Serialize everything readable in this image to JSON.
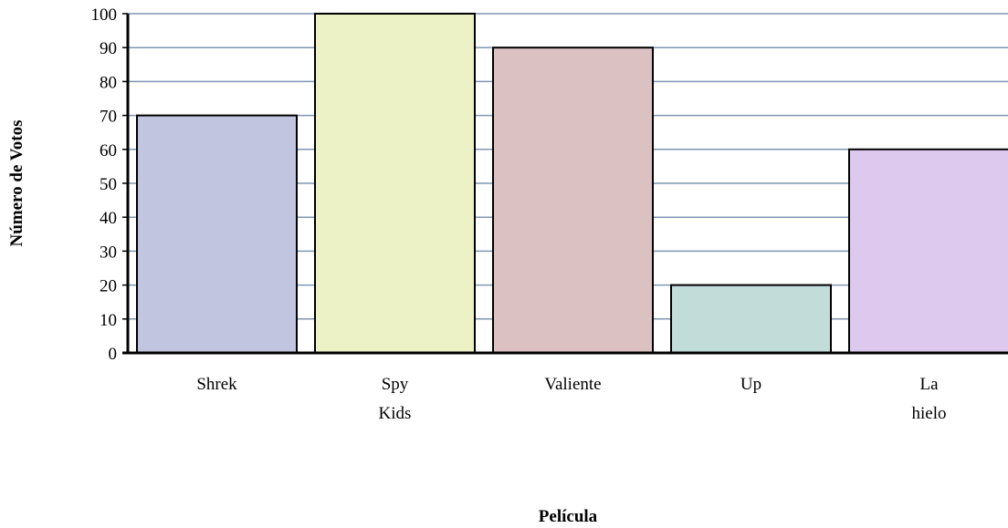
{
  "chart_data": {
    "type": "bar",
    "categories": [
      "Shrek",
      "Spy Kids",
      "Valiente",
      "Up",
      "La hielo"
    ],
    "category_lines": [
      [
        "Shrek"
      ],
      [
        "Spy",
        "Kids"
      ],
      [
        "Valiente"
      ],
      [
        "Up"
      ],
      [
        "La",
        "hielo"
      ]
    ],
    "values": [
      70,
      100,
      90,
      20,
      60
    ],
    "colors": [
      "#c1c5e0",
      "#ecf2c6",
      "#dcc1c2",
      "#c1dcd9",
      "#dec9ee"
    ],
    "gridline_color": "#7f96b2",
    "xlabel": "Película",
    "ylabel": "Número de Votos",
    "ylim": [
      0,
      100
    ],
    "yticks": [
      0,
      10,
      20,
      30,
      40,
      50,
      60,
      70,
      80,
      90,
      100
    ],
    "grid": true,
    "legend": "none"
  }
}
